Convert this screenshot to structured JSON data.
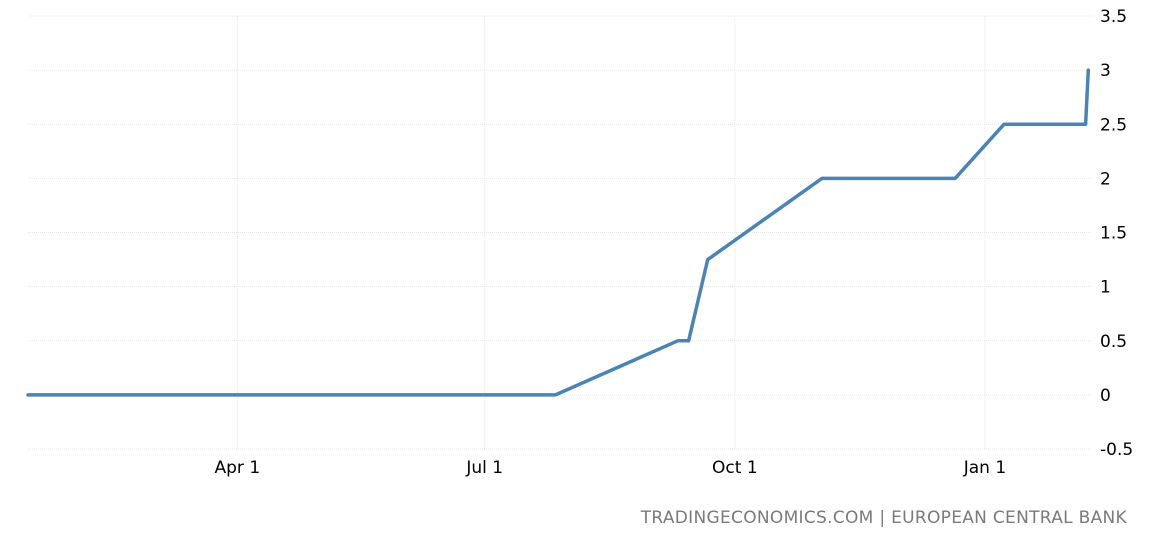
{
  "chart_data": {
    "type": "line",
    "title": "",
    "xlabel": "",
    "ylabel": "",
    "series": [
      {
        "color": "#4a84b7",
        "points": [
          {
            "x": "2022-01-14",
            "y": 0
          },
          {
            "x": "2022-03-01",
            "y": 0
          },
          {
            "x": "2022-07-27",
            "y": 0
          },
          {
            "x": "2022-09-10",
            "y": 0.5
          },
          {
            "x": "2022-09-14",
            "y": 0.5
          },
          {
            "x": "2022-09-21",
            "y": 1.25
          },
          {
            "x": "2022-11-02",
            "y": 2
          },
          {
            "x": "2022-12-21",
            "y": 2
          },
          {
            "x": "2023-01-08",
            "y": 2.5
          },
          {
            "x": "2023-02-07",
            "y": 2.5
          },
          {
            "x": "2023-02-08",
            "y": 3
          }
        ]
      }
    ],
    "xlim": [
      "2022-01-14",
      "2023-02-09"
    ],
    "ylim": [
      -0.5,
      3.5
    ],
    "y_ticks": [
      -0.5,
      0,
      0.5,
      1,
      1.5,
      2,
      2.5,
      3,
      3.5
    ],
    "y_tick_labels": [
      "-0.5",
      "0",
      "0.5",
      "1",
      "1.5",
      "2",
      "2.5",
      "3",
      "3.5"
    ],
    "x_ticks": [
      {
        "x": "2022-04-01",
        "label": "Apr 1"
      },
      {
        "x": "2022-07-01",
        "label": "Jul 1"
      },
      {
        "x": "2022-10-01",
        "label": "Oct 1"
      },
      {
        "x": "2023-01-01",
        "label": "Jan 1"
      }
    ],
    "grid": true,
    "y_axis_side": "right"
  },
  "source": "TRADINGECONOMICS.COM | EUROPEAN CENTRAL BANK"
}
